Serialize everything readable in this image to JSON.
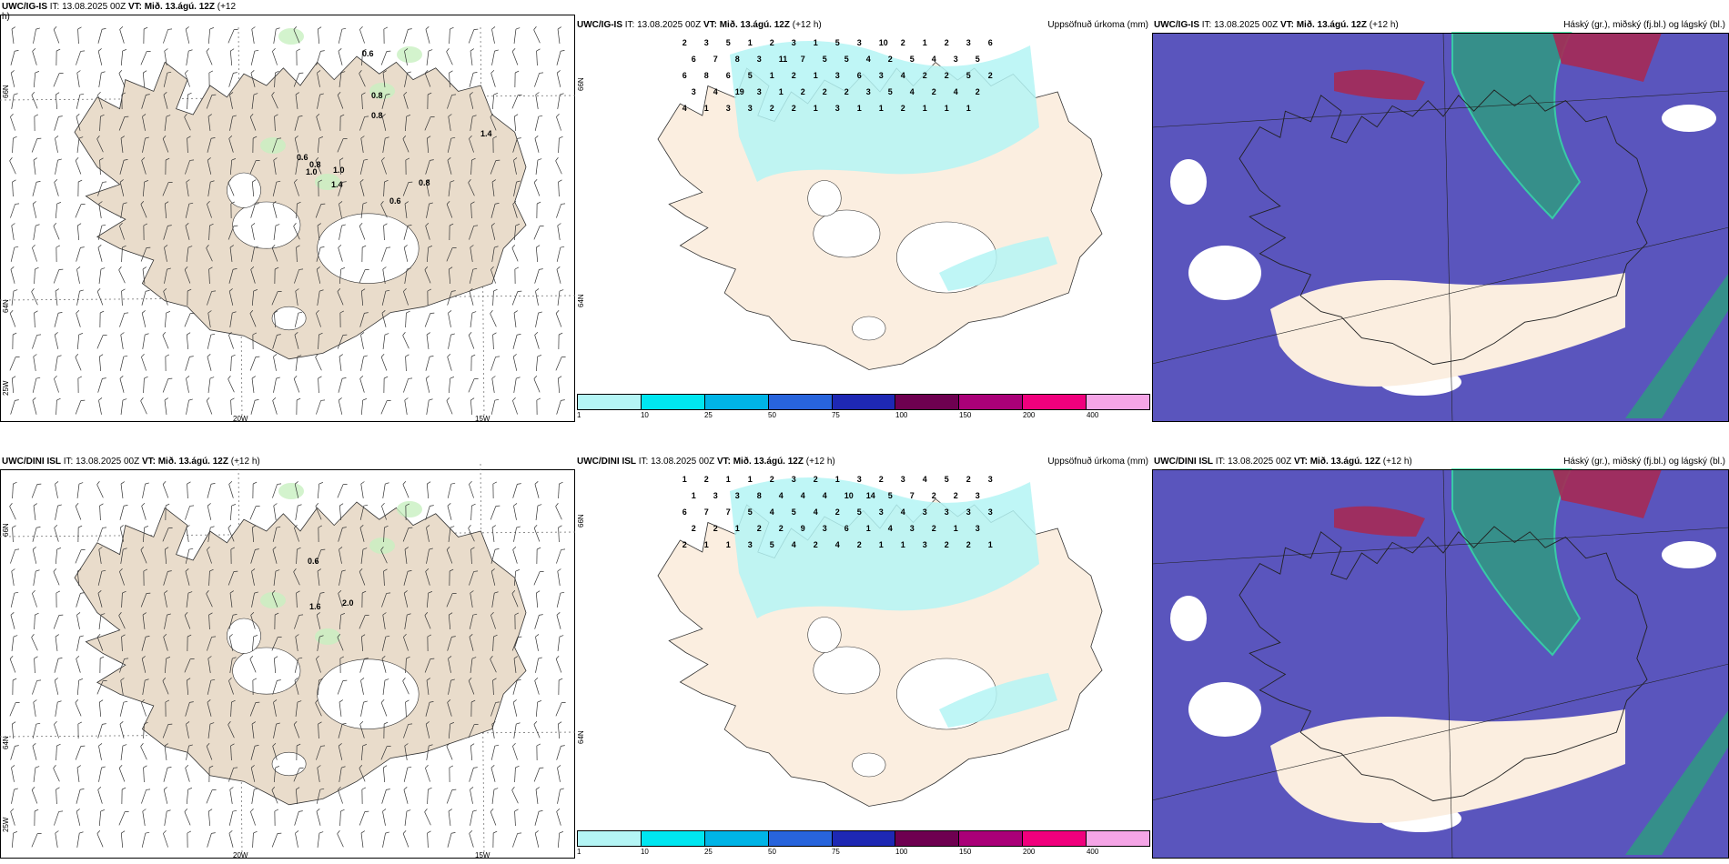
{
  "rows": [
    {
      "wind": {
        "title_model": "UWC/IG-IS",
        "title_it": " IT: 13.08.2025 00Z ",
        "title_vt": "VT: Mið. 13.ágú. 12Z",
        "title_lead": " (+12",
        "title_wrap": "h)",
        "lat_labels": [
          "66N",
          "64N"
        ],
        "lon_labels": [
          "25W",
          "20W",
          "15W"
        ],
        "values": [
          "0.6",
          "0.8",
          "0.8",
          "1.4",
          "0.6",
          "0.8",
          "1.0",
          "1.0",
          "1.4",
          "0.8",
          "0.6"
        ]
      },
      "precip": {
        "title_model": "UWC/IG-IS",
        "title_it": " IT: 13.08.2025 00Z ",
        "title_vt": "VT: Mið. 13.ágú. 12Z",
        "title_lead": " (+12 h)",
        "right_title": "Uppsöfnuð úrkoma (mm)",
        "lat_labels": [
          "66N",
          "64N"
        ],
        "values": [
          "2",
          "3",
          "5",
          "1",
          "2",
          "3",
          "1",
          "5",
          "3",
          "10",
          "2",
          "1",
          "2",
          "3",
          "6",
          "6",
          "7",
          "8",
          "3",
          "11",
          "7",
          "5",
          "5",
          "4",
          "2",
          "5",
          "4",
          "3",
          "5",
          "6",
          "8",
          "6",
          "5",
          "1",
          "2",
          "1",
          "3",
          "6",
          "3",
          "4",
          "2",
          "2",
          "5",
          "2",
          "3",
          "4",
          "19",
          "3",
          "1",
          "2",
          "2",
          "2",
          "3",
          "5",
          "4",
          "2",
          "4",
          "2",
          "4",
          "1",
          "3",
          "3",
          "2",
          "2",
          "1",
          "3",
          "1",
          "1",
          "2",
          "1",
          "1",
          "1"
        ]
      },
      "cloud": {
        "title_model": "UWC/IG-IS",
        "title_it": " IT: 13.08.2025 00Z ",
        "title_vt": "VT: Mið. 13.ágú. 12Z",
        "title_lead": " (+12 h)",
        "right_title": "Háský (gr.), miðský (fj.bl.) og lágský (bl.)"
      }
    },
    {
      "wind": {
        "title_model": "UWC/DINI ISL",
        "title_it": " IT: 13.08.2025 00Z ",
        "title_vt": "VT: Mið. 13.ágú. 12Z",
        "title_lead": " (+12 h)",
        "title_wrap": "",
        "lat_labels": [
          "66N",
          "64N"
        ],
        "lon_labels": [
          "25W",
          "20W",
          "15W"
        ],
        "values": [
          "0.6",
          "1.6",
          "2.0"
        ]
      },
      "precip": {
        "title_model": "UWC/DINI ISL",
        "title_it": " IT: 13.08.2025 00Z ",
        "title_vt": "VT: Mið. 13.ágú. 12Z",
        "title_lead": " (+12 h)",
        "right_title": "Uppsöfnuð úrkoma (mm)",
        "lat_labels": [
          "66N",
          "64N"
        ],
        "values": [
          "1",
          "2",
          "1",
          "1",
          "2",
          "3",
          "2",
          "1",
          "3",
          "2",
          "3",
          "4",
          "5",
          "2",
          "3",
          "1",
          "3",
          "3",
          "8",
          "4",
          "4",
          "4",
          "10",
          "14",
          "5",
          "7",
          "2",
          "2",
          "3",
          "6",
          "7",
          "7",
          "5",
          "4",
          "5",
          "4",
          "2",
          "5",
          "3",
          "4",
          "3",
          "3",
          "3",
          "3",
          "2",
          "2",
          "1",
          "2",
          "2",
          "9",
          "3",
          "6",
          "1",
          "4",
          "3",
          "2",
          "1",
          "3",
          "2",
          "1",
          "1",
          "3",
          "5",
          "4",
          "2",
          "4",
          "2",
          "1",
          "1",
          "3",
          "2",
          "2",
          "1"
        ]
      },
      "cloud": {
        "title_model": "UWC/DINI ISL",
        "title_it": " IT: 13.08.2025 00Z ",
        "title_vt": "VT: Mið. 13.ágú. 12Z",
        "title_lead": " (+12 h)",
        "right_title": "Háský (gr.), miðský (fj.bl.) og lágský (bl.)"
      }
    }
  ],
  "colorbar": {
    "ticks": [
      "1",
      "10",
      "25",
      "50",
      "75",
      "100",
      "150",
      "200",
      "400"
    ],
    "colors": [
      "#b4f5f5",
      "#00e6f0",
      "#00b4e6",
      "#2864dc",
      "#1e28b4",
      "#6e0050",
      "#aa0078",
      "#f0007d",
      "#f5a5e6"
    ]
  },
  "colors": {
    "land": "#e9dccb",
    "land_precip": "#fbeee0",
    "precip_light": "#b4f5f5",
    "high_cloud": "#2aa37a",
    "mid_cloud": "#5a55bd",
    "low_cloud": "#a52a55",
    "wind_green": "#c8f0c0"
  }
}
